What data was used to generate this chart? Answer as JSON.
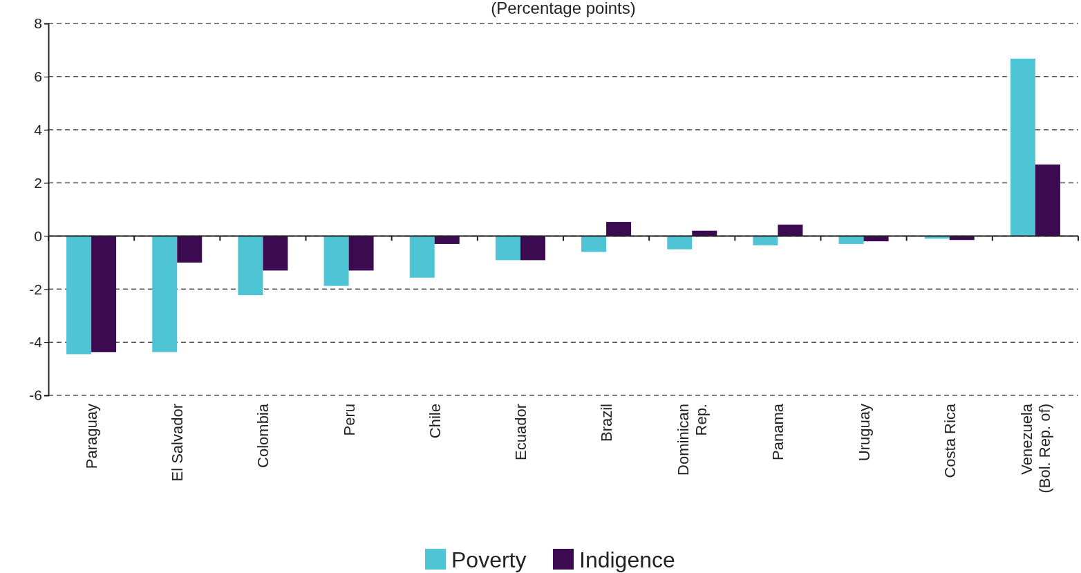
{
  "chart_data": {
    "type": "bar",
    "title": "(Percentage points)",
    "categories": [
      "Paraguay",
      "El Salvador",
      "Colombia",
      "Peru",
      "Chile",
      "Ecuador",
      "Brazil",
      "Dominican\nRep.",
      "Panama",
      "Uruguay",
      "Costa Rica",
      "Venezuela\n(Bol. Rep. of)"
    ],
    "series": [
      {
        "name": "Poverty",
        "color": "#4fc4d4",
        "values": [
          -4.45,
          -4.37,
          -2.23,
          -1.88,
          -1.57,
          -0.91,
          -0.6,
          -0.5,
          -0.35,
          -0.3,
          -0.1,
          6.68
        ]
      },
      {
        "name": "Indigence",
        "color": "#3c0a50",
        "values": [
          -4.37,
          -1.0,
          -1.3,
          -1.3,
          -0.3,
          -0.91,
          0.53,
          0.2,
          0.43,
          -0.2,
          -0.15,
          2.69
        ]
      }
    ],
    "ylim": [
      -6,
      8
    ],
    "yticks": [
      -6,
      -4,
      -2,
      0,
      2,
      4,
      6,
      8
    ],
    "grid": "y",
    "legend": "bottom"
  }
}
